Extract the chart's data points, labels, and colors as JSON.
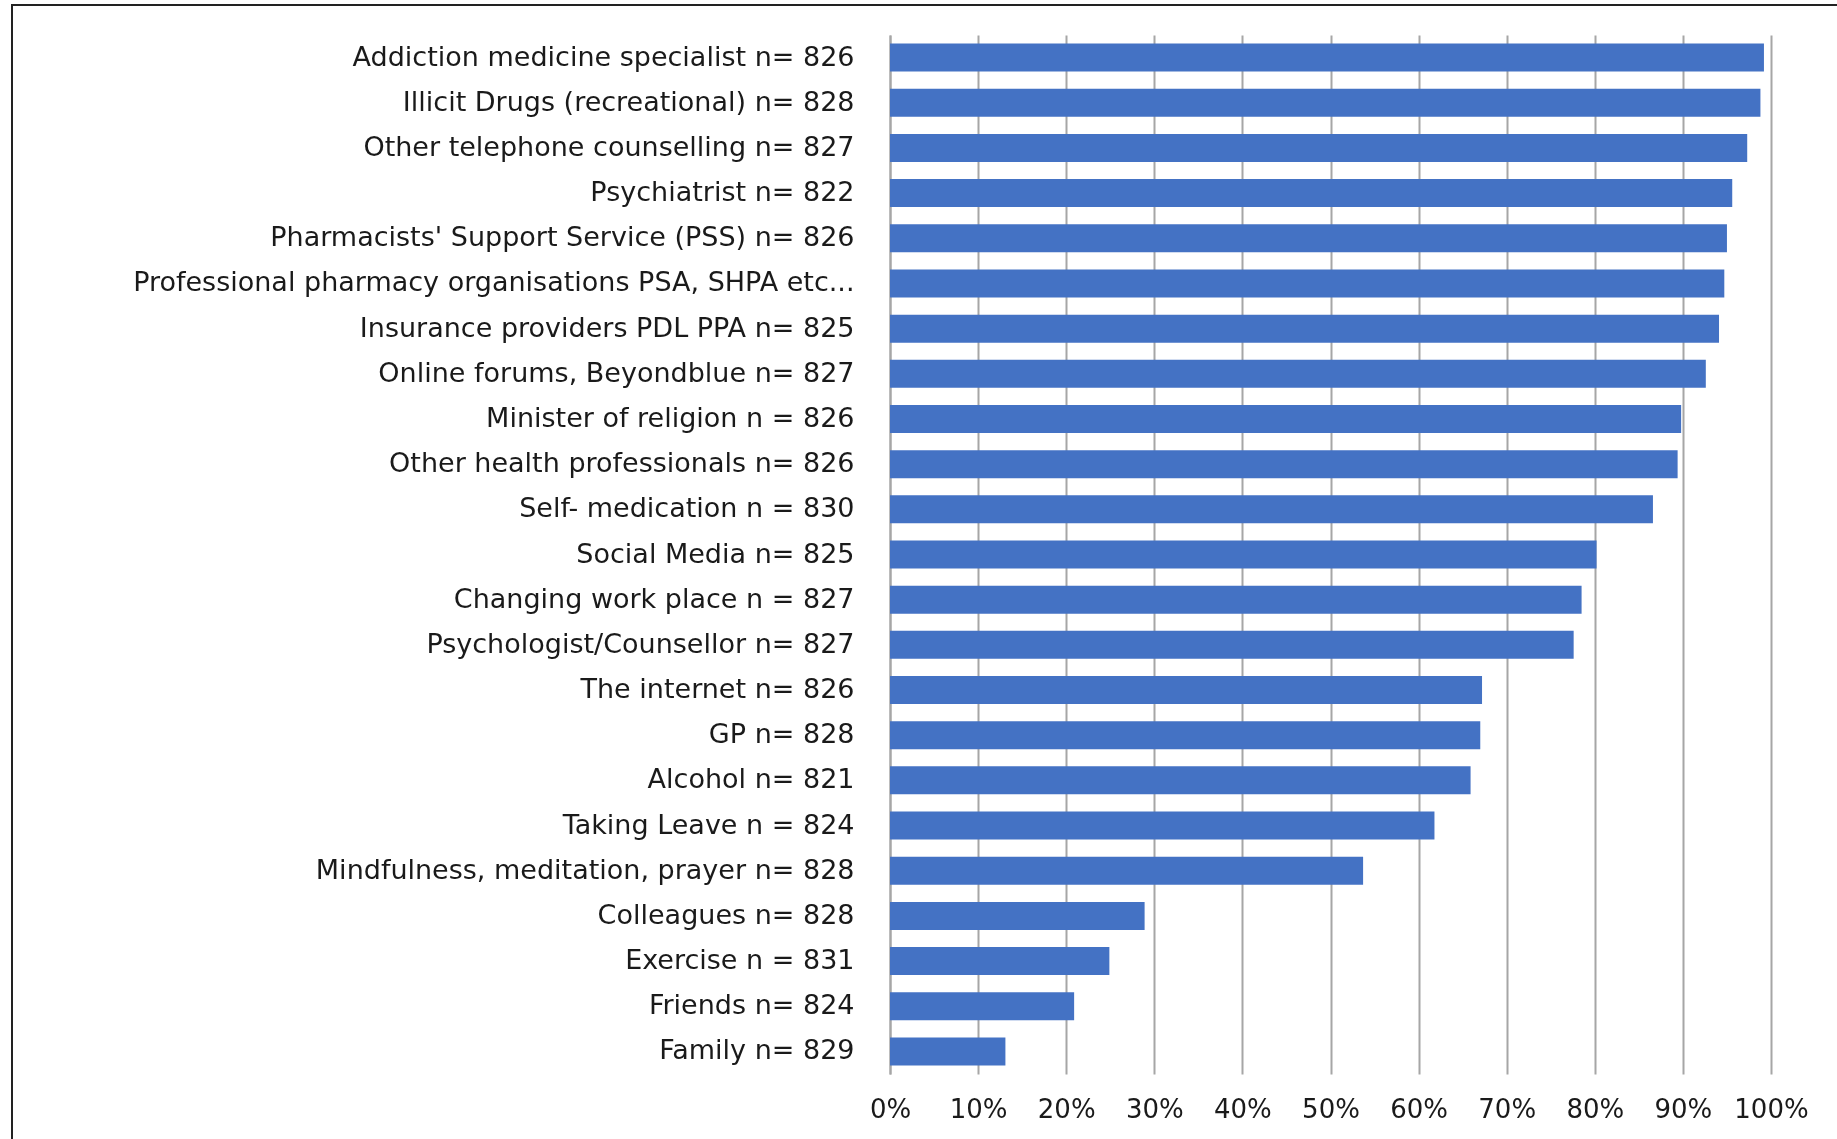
{
  "chart_data": {
    "type": "bar",
    "orientation": "horizontal",
    "categories": [
      "Addiction medicine specialist n= 826",
      "Illicit Drugs (recreational) n= 828",
      "Other telephone counselling n= 827",
      "Psychiatrist n= 822",
      "Pharmacists' Support Service (PSS) n= 826",
      "Professional pharmacy organisations PSA, SHPA etc...",
      "Insurance providers PDL PPA n= 825",
      "Online forums, Beyondblue n= 827",
      "Minister of religion n = 826",
      "Other health professionals n= 826",
      "Self- medication n = 830",
      "Social Media n= 825",
      "Changing work place n = 827",
      "Psychologist/Counsellor n= 827",
      "The internet n= 826",
      "GP n= 828",
      "Alcohol n= 821",
      "Taking Leave n = 824",
      "Mindfulness, meditation, prayer n= 828",
      "Colleagues n= 828",
      "Exercise n = 831",
      "Friends n= 824",
      "Family n= 829"
    ],
    "values": [
      99.2,
      98.8,
      97.3,
      95.6,
      95.0,
      94.7,
      94.1,
      92.6,
      89.8,
      89.4,
      86.6,
      80.2,
      78.5,
      77.6,
      67.2,
      67.0,
      65.9,
      61.8,
      53.7,
      28.9,
      24.9,
      20.9,
      13.1
    ],
    "color": "#4472c4",
    "xlim": [
      0,
      100
    ],
    "xticks": [
      {
        "value": 0,
        "label": "0%"
      },
      {
        "value": 10,
        "label": "10%"
      },
      {
        "value": 20,
        "label": "20%"
      },
      {
        "value": 30,
        "label": "30%"
      },
      {
        "value": 40,
        "label": "40%"
      },
      {
        "value": 50,
        "label": "50%"
      },
      {
        "value": 60,
        "label": "60%"
      },
      {
        "value": 70,
        "label": "70%"
      },
      {
        "value": 80,
        "label": "80%"
      },
      {
        "value": 90,
        "label": "90%"
      },
      {
        "value": 100,
        "label": "100%"
      }
    ],
    "grid": "x"
  }
}
